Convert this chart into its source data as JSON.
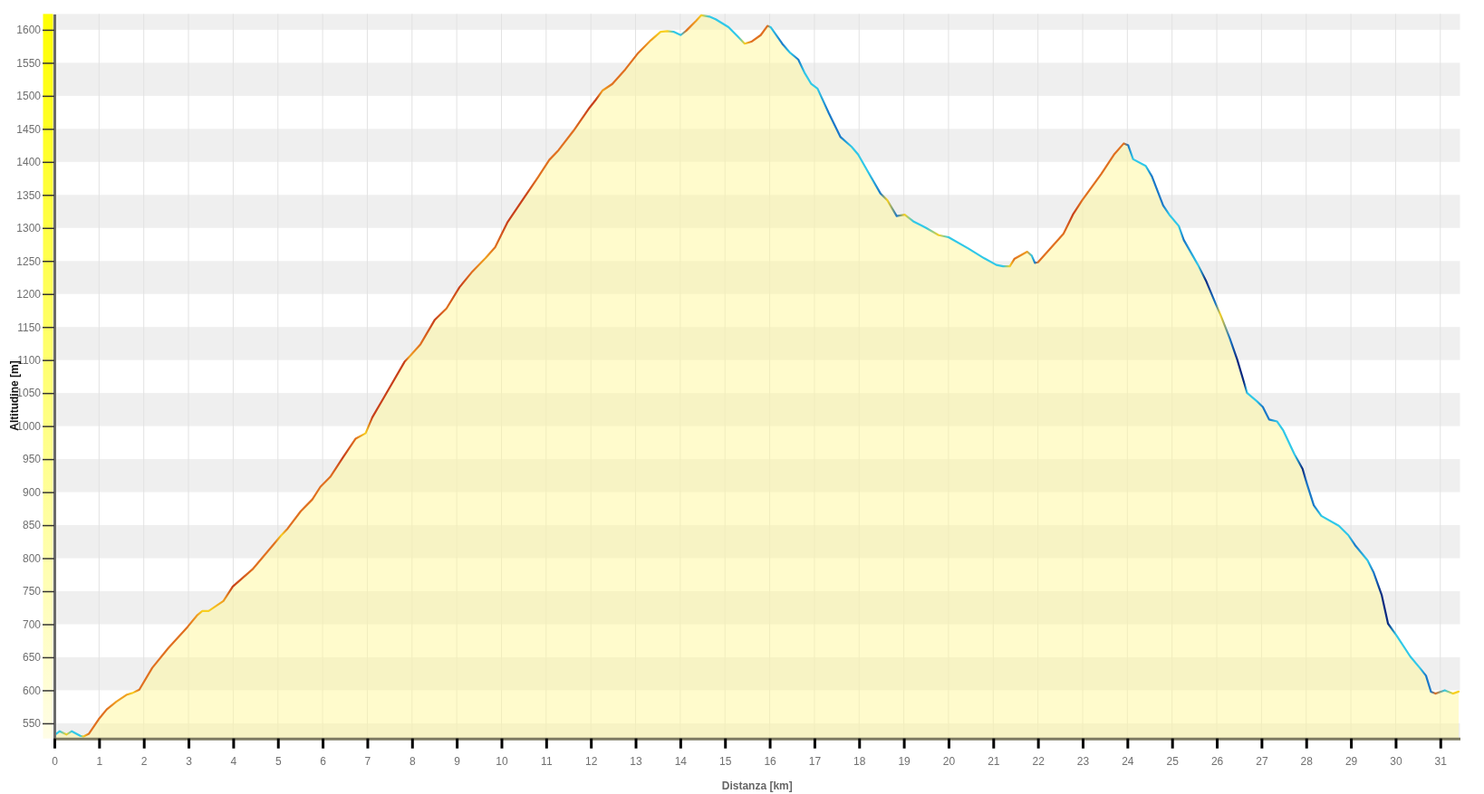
{
  "chart_data": {
    "type": "area",
    "xlabel": "Distanza [km]",
    "ylabel": "Altitudine [m]",
    "x": [
      0.0,
      0.12,
      0.27,
      0.39,
      0.58,
      0.65,
      0.77,
      0.99,
      1.17,
      1.39,
      1.61,
      1.75,
      1.9,
      2.19,
      2.55,
      2.98,
      3.2,
      3.31,
      3.45,
      3.78,
      3.99,
      4.43,
      4.93,
      5.08,
      5.22,
      5.51,
      5.77,
      5.95,
      6.17,
      6.45,
      6.74,
      6.96,
      7.11,
      7.36,
      7.83,
      7.94,
      8.19,
      8.51,
      8.77,
      9.06,
      9.35,
      9.64,
      9.86,
      10.13,
      10.52,
      10.81,
      11.07,
      11.28,
      11.61,
      11.97,
      12.11,
      12.26,
      12.48,
      12.77,
      13.06,
      13.34,
      13.56,
      13.71,
      13.85,
      14.01,
      14.14,
      14.36,
      14.47,
      14.65,
      14.79,
      15.08,
      15.3,
      15.44,
      15.59,
      15.8,
      15.95,
      16.02,
      16.28,
      16.46,
      16.64,
      16.78,
      16.93,
      17.07,
      17.32,
      17.58,
      17.83,
      17.98,
      18.19,
      18.48,
      18.63,
      18.84,
      19.02,
      19.21,
      19.5,
      19.78,
      20.0,
      20.44,
      20.8,
      21.07,
      21.22,
      21.37,
      21.47,
      21.76,
      21.86,
      21.93,
      22.0,
      22.29,
      22.57,
      22.78,
      22.99,
      23.42,
      23.7,
      23.92,
      24.02,
      24.13,
      24.41,
      24.55,
      24.8,
      24.94,
      25.15,
      25.26,
      25.58,
      25.76,
      25.97,
      26.08,
      26.29,
      26.46,
      26.61,
      26.68,
      26.89,
      27.03,
      27.17,
      27.35,
      27.49,
      27.74,
      27.92,
      28.02,
      28.17,
      28.34,
      28.73,
      28.94,
      29.09,
      29.37,
      29.51,
      29.69,
      29.83,
      30.01,
      30.33,
      30.54,
      30.68,
      30.79,
      30.89,
      31.1,
      31.28,
      31.41
    ],
    "series": [
      {
        "color": "#fff799",
        "values": [
          532,
          538,
          533,
          538,
          531,
          530,
          534,
          556,
          571,
          583,
          593,
          596,
          601,
          634,
          664,
          696,
          714,
          720,
          720,
          735,
          757,
          783,
          823,
          835,
          845,
          871,
          889,
          908,
          923,
          952,
          981,
          989,
          1013,
          1042,
          1097,
          1105,
          1124,
          1161,
          1178,
          1210,
          1234,
          1254,
          1271,
          1308,
          1347,
          1376,
          1403,
          1418,
          1447,
          1482,
          1494,
          1508,
          1518,
          1540,
          1565,
          1584,
          1597,
          1598,
          1597,
          1592,
          1599,
          1614,
          1622,
          1620,
          1616,
          1604,
          1589,
          1579,
          1582,
          1592,
          1606,
          1604,
          1579,
          1565,
          1555,
          1535,
          1518,
          1511,
          1474,
          1438,
          1423,
          1411,
          1386,
          1352,
          1342,
          1318,
          1320,
          1310,
          1300,
          1289,
          1286,
          1269,
          1254,
          1244,
          1242,
          1242,
          1253,
          1264,
          1258,
          1247,
          1248,
          1270,
          1291,
          1320,
          1342,
          1382,
          1411,
          1428,
          1425,
          1404,
          1394,
          1378,
          1334,
          1320,
          1303,
          1282,
          1244,
          1220,
          1186,
          1169,
          1133,
          1100,
          1066,
          1050,
          1038,
          1029,
          1010,
          1007,
          993,
          957,
          935,
          912,
          880,
          864,
          849,
          835,
          820,
          797,
          778,
          744,
          701,
          684,
          651,
          634,
          622,
          598,
          595,
          600,
          595,
          598
        ],
        "colors": [
          "#30c8e8",
          "#30c8e8",
          "#f8d020",
          "#30c8e8",
          "#30c8e8",
          "#f8d020",
          "#e07020",
          "#e07020",
          "#e07020",
          "#f0a020",
          "#f0a020",
          "#f8d020",
          "#e07020",
          "#e07020",
          "#e07020",
          "#e07020",
          "#f0a020",
          "#f8d020",
          "#f8d020",
          "#f0a020",
          "#c8401a",
          "#e07020",
          "#e07020",
          "#f8d020",
          "#e07020",
          "#e07020",
          "#e07020",
          "#e07020",
          "#e07020",
          "#c8401a",
          "#e07020",
          "#f8d020",
          "#c8401a",
          "#c8401a",
          "#c8401a",
          "#f0a020",
          "#e07020",
          "#c8401a",
          "#e07020",
          "#c8401a",
          "#e07020",
          "#f0a020",
          "#e07020",
          "#c8401a",
          "#c8401a",
          "#e07020",
          "#e07020",
          "#e07020",
          "#e07020",
          "#c8401a",
          "#c8401a",
          "#f0a020",
          "#e07020",
          "#e07020",
          "#e07020",
          "#f0a020",
          "#f8d020",
          "#f8d020",
          "#30c8e8",
          "#30c8e8",
          "#e07020",
          "#f0a020",
          "#f8d020",
          "#30c8e8",
          "#30c8e8",
          "#30c8e8",
          "#30c8e8",
          "#f8d020",
          "#e07020",
          "#e07020",
          "#e07020",
          "#30c8e8",
          "#1a78c8",
          "#30c8e8",
          "#1a78c8",
          "#30c8e8",
          "#30c8e8",
          "#30c8e8",
          "#1a78c8",
          "#1a78c8",
          "#30c8e8",
          "#30c8e8",
          "#30c8e8",
          "#1a78c8",
          "#f8d020",
          "#1a78c8",
          "#f8d020",
          "#30c8e8",
          "#30c8e8",
          "#f8d020",
          "#30c8e8",
          "#30c8e8",
          "#30c8e8",
          "#30c8e8",
          "#30c8e8",
          "#f8d020",
          "#e07020",
          "#f0a020",
          "#30c8e8",
          "#1a78c8",
          "#e07020",
          "#e07020",
          "#e07020",
          "#c8401a",
          "#e07020",
          "#e07020",
          "#e07020",
          "#e07020",
          "#1a78c8",
          "#30c8e8",
          "#30c8e8",
          "#1a78c8",
          "#1a78c8",
          "#30c8e8",
          "#30c8e8",
          "#1a78c8",
          "#30c8e8",
          "#0a2a80",
          "#1a78c8",
          "#f8d020",
          "#1a78c8",
          "#0a2a80",
          "#0a2a80",
          "#30c8e8",
          "#30c8e8",
          "#1a78c8",
          "#1a78c8",
          "#30c8e8",
          "#30c8e8",
          "#30c8e8",
          "#0a2a80",
          "#1a78c8",
          "#1a78c8",
          "#30c8e8",
          "#30c8e8",
          "#30c8e8",
          "#1a78c8",
          "#30c8e8",
          "#1a78c8",
          "#0a2a80",
          "#0a2a80",
          "#30c8e8",
          "#30c8e8",
          "#30c8e8",
          "#1a78c8",
          "#1a78c8",
          "#e07020",
          "#30c8e8",
          "#f8d020",
          "#f8d020"
        ]
      }
    ],
    "xlim": [
      0,
      31.44
    ],
    "xticks": [
      0,
      1,
      2,
      3,
      4,
      5,
      6,
      7,
      8,
      9,
      10,
      11,
      12,
      13,
      14,
      15,
      16,
      17,
      18,
      19,
      20,
      21,
      22,
      23,
      24,
      25,
      26,
      27,
      28,
      29,
      30,
      31
    ],
    "ylim": [
      527,
      1624
    ],
    "yticks": [
      550,
      600,
      650,
      700,
      750,
      800,
      850,
      900,
      950,
      1000,
      1050,
      1100,
      1150,
      1200,
      1250,
      1300,
      1350,
      1400,
      1450,
      1500,
      1550,
      1600
    ],
    "grid": true
  }
}
